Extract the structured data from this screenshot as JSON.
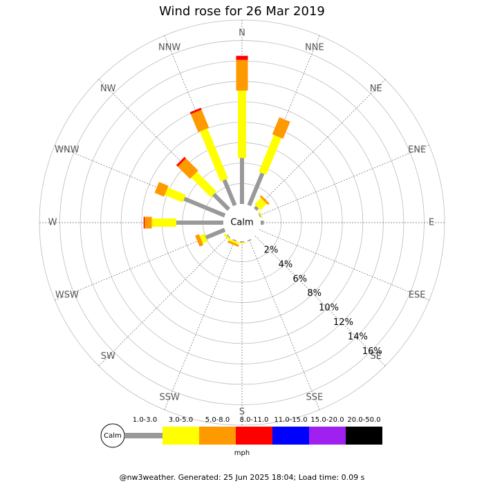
{
  "chart_data": {
    "type": "rose",
    "title": "Wind rose for 26 Mar 2019",
    "categories": [
      "N",
      "NNE",
      "NE",
      "ENE",
      "E",
      "ESE",
      "SE",
      "SSE",
      "S",
      "SSW",
      "SW",
      "WSW",
      "W",
      "WNW",
      "NW",
      "NNW"
    ],
    "center_label": "Calm",
    "units": "mph",
    "ylim": [
      0,
      18
    ],
    "yticks": [
      {
        "value": 2,
        "label": "2%"
      },
      {
        "value": 4,
        "label": "4%"
      },
      {
        "value": 6,
        "label": "6%"
      },
      {
        "value": 8,
        "label": "8%"
      },
      {
        "value": 10,
        "label": "10%"
      },
      {
        "value": 12,
        "label": "12%"
      },
      {
        "value": 14,
        "label": "14%"
      },
      {
        "value": 16,
        "label": "16%"
      }
    ],
    "series": [
      {
        "name": "1.0-3.0",
        "color": "#999999",
        "values": [
          4.5,
          3.4,
          0.3,
          0.1,
          0.3,
          0,
          0,
          0.1,
          0.1,
          0.1,
          0.1,
          2.0,
          4.6,
          4.3,
          2.1,
          2.7
        ]
      },
      {
        "name": "3.0-5.0",
        "color": "#ffff00",
        "values": [
          6.6,
          3.9,
          0.9,
          0.1,
          0,
          0,
          0,
          0,
          0.1,
          0.2,
          0.2,
          0.5,
          2.4,
          1.9,
          2.7,
          5.3
        ]
      },
      {
        "name": "5.0-8.0",
        "color": "#ff9900",
        "values": [
          3.0,
          1.8,
          0.2,
          0,
          0,
          0,
          0,
          0,
          0,
          0.2,
          0,
          0.4,
          0.7,
          1.0,
          1.7,
          1.9
        ]
      },
      {
        "name": "8.0-11.0",
        "color": "#ff0000",
        "values": [
          0.4,
          0,
          0,
          0,
          0,
          0,
          0,
          0,
          0,
          0,
          0,
          0,
          0.1,
          0,
          0.2,
          0.2
        ]
      },
      {
        "name": "11.0-15.0",
        "color": "#0000ff",
        "values": [
          0,
          0,
          0,
          0,
          0,
          0,
          0,
          0,
          0,
          0,
          0,
          0,
          0,
          0,
          0,
          0
        ]
      },
      {
        "name": "15.0-20.0",
        "color": "#a020f0",
        "values": [
          0,
          0,
          0,
          0,
          0,
          0,
          0,
          0,
          0,
          0,
          0,
          0,
          0,
          0,
          0,
          0
        ]
      },
      {
        "name": "20.0-50.0",
        "color": "#000000",
        "values": [
          0,
          0,
          0,
          0,
          0,
          0,
          0,
          0,
          0,
          0,
          0,
          0,
          0,
          0,
          0,
          0
        ]
      }
    ],
    "footer": "@nw3weather. Generated: 25 Jun 2025 18:04; Load time: 0.09 s"
  }
}
